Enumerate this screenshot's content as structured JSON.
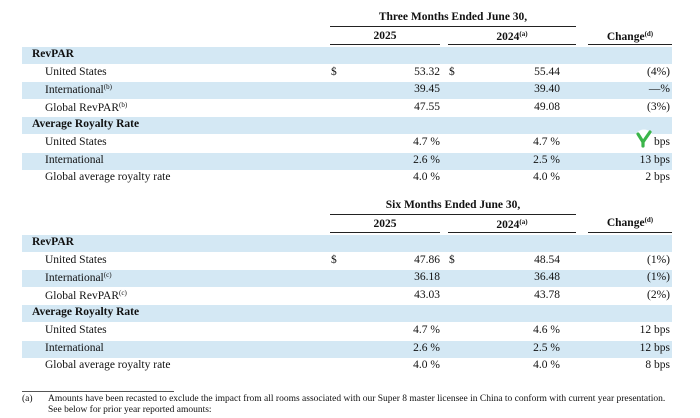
{
  "headers": {
    "period1": "Three Months Ended June 30,",
    "period2": "Six Months Ended June 30,",
    "year_current": "2025",
    "year_prior": "2024",
    "year_prior_note": "(a)",
    "change": "Change",
    "change_note": "(d)"
  },
  "currency_symbol": "$",
  "sections": [
    {
      "rows": [
        {
          "label": "RevPAR",
          "bold": true
        },
        {
          "label": "United States",
          "dollar": true,
          "v2025": "53.32",
          "v2024": "55.44",
          "change": "(4%)"
        },
        {
          "label": "International",
          "note": "(b)",
          "v2025": "39.45",
          "v2024": "39.40",
          "change": "—%"
        },
        {
          "label": "Global RevPAR",
          "note": "(b)",
          "v2025": "47.55",
          "v2024": "49.08",
          "change": "(3%)"
        },
        {
          "label": "Average Royalty Rate",
          "bold": true
        },
        {
          "label": "United States",
          "v2025": "4.7 %",
          "v2024": "4.7 %",
          "change": "bps"
        },
        {
          "label": "International",
          "v2025": "2.6 %",
          "v2024": "2.5 %",
          "change": "13 bps"
        },
        {
          "label": "Global average royalty rate",
          "v2025": "4.0 %",
          "v2024": "4.0 %",
          "change": "2 bps"
        }
      ]
    },
    {
      "rows": [
        {
          "label": "RevPAR",
          "bold": true
        },
        {
          "label": "United States",
          "dollar": true,
          "v2025": "47.86",
          "v2024": "48.54",
          "change": "(1%)"
        },
        {
          "label": "International",
          "note": "(c)",
          "v2025": "36.18",
          "v2024": "36.48",
          "change": "(1%)"
        },
        {
          "label": "Global RevPAR",
          "note": "(c)",
          "v2025": "43.03",
          "v2024": "43.78",
          "change": "(2%)"
        },
        {
          "label": "Average Royalty Rate",
          "bold": true
        },
        {
          "label": "United States",
          "v2025": "4.7 %",
          "v2024": "4.6 %",
          "change": "12 bps"
        },
        {
          "label": "International",
          "v2025": "2.6 %",
          "v2024": "2.5 %",
          "change": "12 bps"
        },
        {
          "label": "Global average royalty rate",
          "v2025": "4.0 %",
          "v2024": "4.0 %",
          "change": "8 bps"
        }
      ]
    }
  ],
  "footnote": {
    "marker": "(a)",
    "line1": "Amounts have been recasted to exclude the impact from all rooms associated with our Super 8 master licensee in China to conform with current year presentation.",
    "line2": "See below for prior year reported amounts:"
  },
  "logo_icon": "green-check-logo-icon",
  "colors": {
    "band": "#d4e8f4",
    "logo": "#3bb54a"
  }
}
